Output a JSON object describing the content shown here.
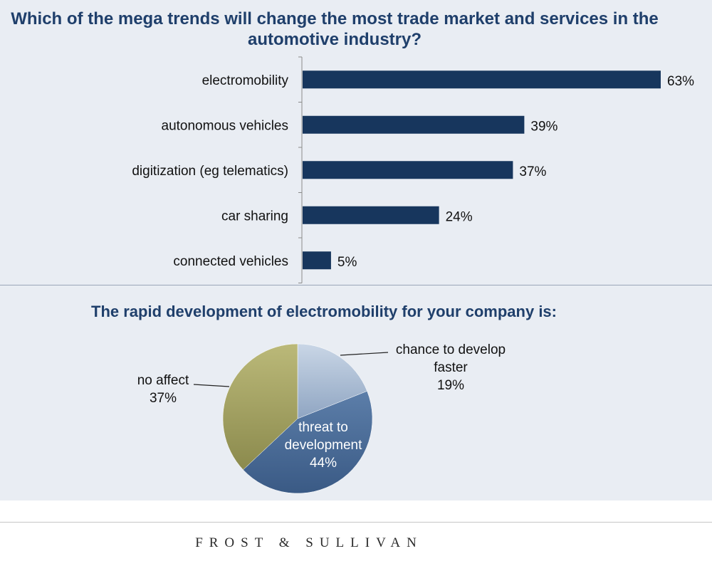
{
  "top_title": "Which of the mega trends will change the most trade market and services  in the automotive industry?",
  "bottom_title": "The rapid development of electromobility for your company is:",
  "footer_logo": "FROST & SULLIVAN",
  "colors": {
    "title": "#1f3f6b",
    "bar": "#17365d",
    "panel_background": "#e9edf3",
    "pie_chance": "#a9bbd3",
    "pie_threat": "#4a6b96",
    "pie_no_affect": "#a4a366"
  },
  "chart_data": [
    {
      "type": "bar",
      "orientation": "horizontal",
      "title": "Which of the mega trends will change the most trade market and services  in the automotive industry?",
      "categories": [
        "electromobility",
        "autonomous vehicles",
        "digitization (eg telematics)",
        "car sharing",
        "connected vehicles"
      ],
      "values": [
        63,
        39,
        37,
        24,
        5
      ],
      "value_labels": [
        "63%",
        "39%",
        "37%",
        "24%",
        "5%"
      ],
      "unit": "%",
      "xlim": [
        0,
        63
      ],
      "grid": false,
      "legend": "none"
    },
    {
      "type": "pie",
      "title": "The rapid development of electromobility for your company is:",
      "slices": [
        {
          "label": "chance to develop faster",
          "label_lines": [
            "chance to develop",
            "faster"
          ],
          "value": 19,
          "value_label": "19%",
          "color": "#a9bbd3"
        },
        {
          "label": "threat to development",
          "label_lines": [
            "threat to",
            "development"
          ],
          "value": 44,
          "value_label": "44%",
          "color": "#4a6b96"
        },
        {
          "label": "no affect",
          "label_lines": [
            "no affect"
          ],
          "value": 37,
          "value_label": "37%",
          "color": "#a4a366"
        }
      ],
      "start_angle": "12 o'clock",
      "direction": "clockwise",
      "legend": "none"
    }
  ]
}
